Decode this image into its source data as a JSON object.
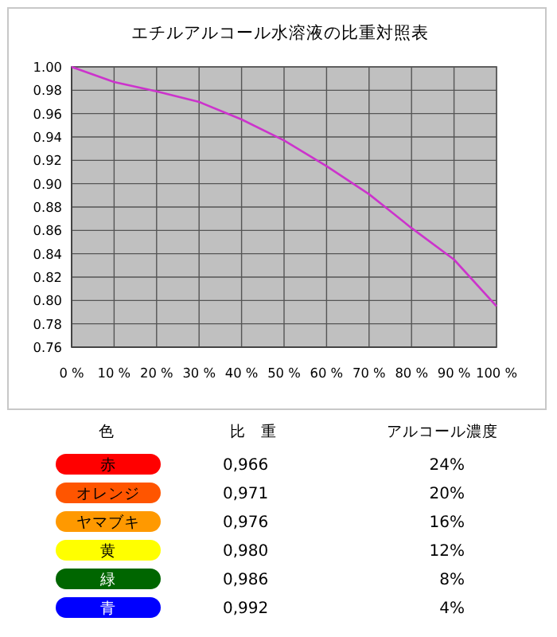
{
  "chart_data": [
    {
      "type": "line",
      "title": "エチルアルコール水溶液の比重対照表",
      "x": [
        0,
        10,
        20,
        30,
        40,
        50,
        60,
        70,
        80,
        90,
        100
      ],
      "series": [
        {
          "color": "#cc33cc",
          "values": [
            1.0,
            0.987,
            0.979,
            0.97,
            0.955,
            0.937,
            0.915,
            0.891,
            0.862,
            0.835,
            0.795
          ]
        }
      ],
      "xlim": [
        0,
        100
      ],
      "xticks": [
        {
          "value": 0,
          "label": "0 %"
        },
        {
          "value": 10,
          "label": "10 %"
        },
        {
          "value": 20,
          "label": "20 %"
        },
        {
          "value": 30,
          "label": "30 %"
        },
        {
          "value": 40,
          "label": "40 %"
        },
        {
          "value": 50,
          "label": "50 %"
        },
        {
          "value": 60,
          "label": "60 %"
        },
        {
          "value": 70,
          "label": "70 %"
        },
        {
          "value": 80,
          "label": "80 %"
        },
        {
          "value": 90,
          "label": "90 %"
        },
        {
          "value": 100,
          "label": "100 %"
        }
      ],
      "ylim": [
        0.76,
        1.0
      ],
      "yticks": [
        {
          "value": 0.76,
          "label": "0.76"
        },
        {
          "value": 0.78,
          "label": "0.78"
        },
        {
          "value": 0.8,
          "label": "0.80"
        },
        {
          "value": 0.82,
          "label": "0.82"
        },
        {
          "value": 0.84,
          "label": "0.84"
        },
        {
          "value": 0.86,
          "label": "0.86"
        },
        {
          "value": 0.88,
          "label": "0.88"
        },
        {
          "value": 0.9,
          "label": "0.90"
        },
        {
          "value": 0.92,
          "label": "0.92"
        },
        {
          "value": 0.94,
          "label": "0.94"
        },
        {
          "value": 0.96,
          "label": "0.96"
        },
        {
          "value": 0.98,
          "label": "0.98"
        },
        {
          "value": 1.0,
          "label": "1.00"
        }
      ],
      "grid": true
    },
    {
      "type": "other",
      "legend_title": "色",
      "categories": [
        "赤",
        "オレンジ",
        "ヤマブキ",
        "黄",
        "緑",
        "青"
      ],
      "colors": [
        "#ff0000",
        "#ff5500",
        "#ff9900",
        "#ffff00",
        "#006600",
        "#0000ff"
      ],
      "series": [
        {
          "name": "比 重",
          "values": [
            0.966,
            0.971,
            0.976,
            0.98,
            0.986,
            0.992
          ],
          "value_labels": [
            "0,966",
            "0,971",
            "0,976",
            "0,980",
            "0,986",
            "0,992"
          ]
        },
        {
          "name": "アルコール濃度",
          "values": [
            24,
            20,
            16,
            12,
            8,
            4
          ],
          "value_labels": [
            "24%",
            "20%",
            "16%",
            "12%",
            "8%",
            "4%"
          ]
        }
      ]
    }
  ]
}
